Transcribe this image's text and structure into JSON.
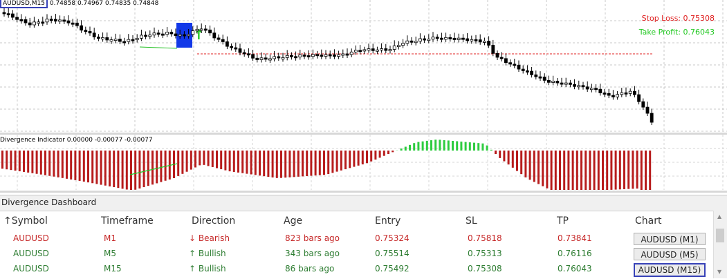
{
  "chart": {
    "symbol": "AUDUSD,M15",
    "ohlc": "0.74858 0.74967 0.74835 0.74848",
    "stop_loss": "Stop Loss: 0.75308",
    "take_profit": "Take Profit: 0.76043",
    "colors": {
      "stop_loss": "#e02020",
      "take_profit": "#1fc81f",
      "highlight": "#1238e8"
    }
  },
  "indicator": {
    "title": "Divergence Indicator 0.00000 -0.00077 -0.00077",
    "colors": {
      "bearish": "#b71c1c",
      "bullish": "#2ecc40",
      "divergence_line": "#22c022"
    }
  },
  "dashboard": {
    "title": "Divergence Dashboard",
    "headers": [
      "↑Symbol",
      "Timeframe",
      "Direction",
      "Age",
      "Entry",
      "SL",
      "TP",
      "Chart"
    ],
    "rows": [
      {
        "symbol": "AUDUSD",
        "timeframe": "M1",
        "direction": "Bearish",
        "arrow": "↓",
        "age": "823 bars ago",
        "entry": "0.75324",
        "sl": "0.75818",
        "tp": "0.73841",
        "chart": "AUDUSD (M1)",
        "color": "#c62828"
      },
      {
        "symbol": "AUDUSD",
        "timeframe": "M5",
        "direction": "Bullish",
        "arrow": "↑",
        "age": "343 bars ago",
        "entry": "0.75514",
        "sl": "0.75313",
        "tp": "0.76116",
        "chart": "AUDUSD (M5)",
        "color": "#2e7d32"
      },
      {
        "symbol": "AUDUSD",
        "timeframe": "M15",
        "direction": "Bullish",
        "arrow": "↑",
        "age": "86 bars ago",
        "entry": "0.75492",
        "sl": "0.75308",
        "tp": "0.76043",
        "chart": "AUDUSD (M15)",
        "color": "#2e7d32"
      }
    ]
  }
}
